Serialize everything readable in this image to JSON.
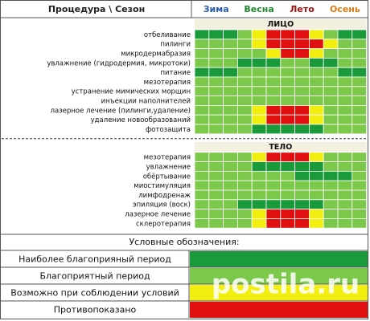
{
  "header": {
    "procedure_season": "Процедура \\ Сезон",
    "seasons": [
      {
        "name": "Зима",
        "color": "#2a5db0"
      },
      {
        "name": "Весна",
        "color": "#1e8a2e"
      },
      {
        "name": "Лето",
        "color": "#a01010"
      },
      {
        "name": "Осень",
        "color": "#e07a10"
      }
    ]
  },
  "sections": [
    {
      "title": "ЛИЦО",
      "rows": [
        {
          "label": "отбеливание",
          "cells": [
            0,
            0,
            0,
            1,
            2,
            3,
            3,
            3,
            2,
            1,
            0,
            0
          ]
        },
        {
          "label": "пилинги",
          "cells": [
            1,
            1,
            1,
            1,
            2,
            3,
            3,
            3,
            3,
            2,
            1,
            1
          ]
        },
        {
          "label": "микродермабразия",
          "cells": [
            1,
            1,
            1,
            1,
            1,
            2,
            3,
            3,
            2,
            1,
            1,
            1
          ]
        },
        {
          "label": "увлажнение (гидродермия, микротоки)",
          "cells": [
            1,
            1,
            1,
            0,
            0,
            0,
            1,
            1,
            0,
            0,
            1,
            1
          ]
        },
        {
          "label": "питание",
          "cells": [
            0,
            0,
            0,
            1,
            1,
            1,
            1,
            1,
            1,
            1,
            0,
            0
          ]
        },
        {
          "label": "мезотерапия",
          "cells": [
            1,
            1,
            1,
            1,
            1,
            1,
            1,
            1,
            1,
            1,
            1,
            1
          ]
        },
        {
          "label": "устранение мимических морщин",
          "cells": [
            1,
            1,
            1,
            1,
            1,
            1,
            1,
            1,
            1,
            1,
            1,
            1
          ]
        },
        {
          "label": "инъекции наполнителей",
          "cells": [
            1,
            1,
            1,
            1,
            1,
            1,
            1,
            1,
            1,
            1,
            1,
            1
          ]
        },
        {
          "label": "лазерное лечение (пилинги,удаление)",
          "cells": [
            1,
            1,
            1,
            1,
            2,
            3,
            3,
            3,
            2,
            1,
            1,
            1
          ]
        },
        {
          "label": "удаление новообразований",
          "cells": [
            1,
            1,
            1,
            1,
            2,
            3,
            3,
            3,
            2,
            1,
            1,
            1
          ]
        },
        {
          "label": "фотозащита",
          "cells": [
            1,
            1,
            1,
            1,
            0,
            0,
            0,
            0,
            0,
            1,
            1,
            1
          ]
        }
      ]
    },
    {
      "title": "ТЕЛО",
      "rows": [
        {
          "label": "мезотерапия",
          "cells": [
            1,
            1,
            1,
            1,
            2,
            3,
            3,
            3,
            2,
            1,
            1,
            1
          ]
        },
        {
          "label": "увлажнение",
          "cells": [
            1,
            1,
            1,
            1,
            0,
            0,
            0,
            0,
            0,
            1,
            1,
            1
          ]
        },
        {
          "label": "обёртывание",
          "cells": [
            1,
            1,
            1,
            1,
            1,
            1,
            1,
            0,
            0,
            0,
            0,
            1
          ]
        },
        {
          "label": "миостимуляция",
          "cells": [
            1,
            1,
            1,
            1,
            1,
            1,
            1,
            1,
            1,
            1,
            1,
            1
          ]
        },
        {
          "label": "лимфодренаж",
          "cells": [
            1,
            1,
            1,
            1,
            1,
            1,
            1,
            1,
            1,
            1,
            1,
            1
          ]
        },
        {
          "label": "эпиляция (воск)",
          "cells": [
            1,
            1,
            1,
            0,
            0,
            0,
            0,
            0,
            0,
            1,
            1,
            1
          ]
        },
        {
          "label": "лазерное лечение",
          "cells": [
            1,
            1,
            1,
            1,
            2,
            3,
            3,
            3,
            2,
            1,
            1,
            1
          ]
        },
        {
          "label": "склеротерапия",
          "cells": [
            1,
            1,
            1,
            1,
            2,
            3,
            3,
            3,
            2,
            1,
            1,
            1
          ]
        }
      ]
    }
  ],
  "legend": {
    "title": "Условные обозначения:",
    "items": [
      {
        "label": "Наиболее благоприяный период",
        "color": "#1a9a3a"
      },
      {
        "label": "Благоприятный период",
        "color": "#7cc84a"
      },
      {
        "label": "Возможно при соблюдении условий",
        "color": "#f2ee10"
      },
      {
        "label": "Противопоказано",
        "color": "#e01010"
      }
    ]
  },
  "watermark": "postila.ru"
}
